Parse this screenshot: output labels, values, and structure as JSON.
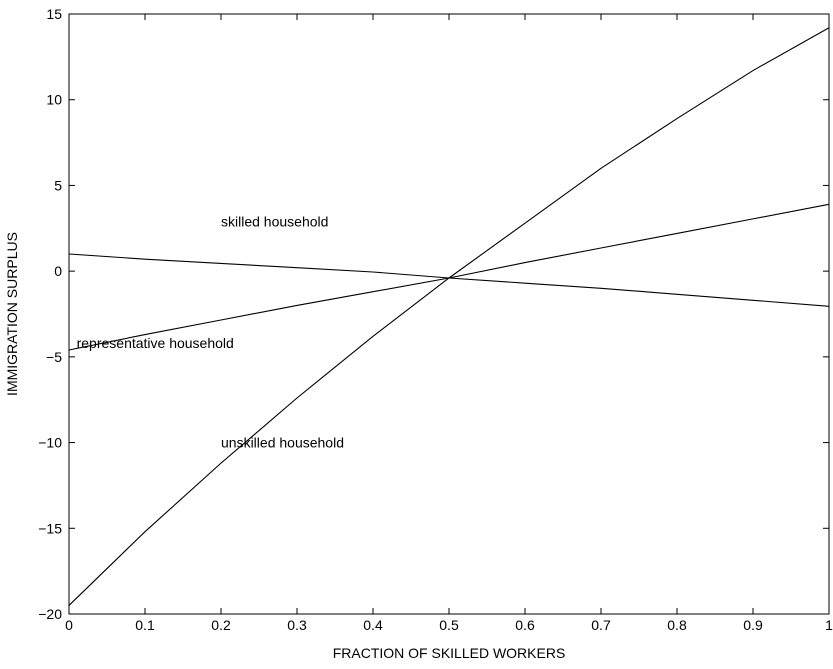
{
  "chart_data": {
    "type": "line",
    "title": "",
    "xlabel": "FRACTION OF SKILLED WORKERS",
    "ylabel": "IMMIGRATION SURPLUS",
    "xlim": [
      0,
      1
    ],
    "ylim": [
      -20,
      15
    ],
    "grid": false,
    "x_ticks": [
      0,
      0.1,
      0.2,
      0.3,
      0.4,
      0.5,
      0.6,
      0.7,
      0.8,
      0.9,
      1
    ],
    "x_tick_labels": [
      "0",
      "0.1",
      "0.2",
      "0.3",
      "0.4",
      "0.5",
      "0.6",
      "0.7",
      "0.8",
      "0.9",
      "1"
    ],
    "y_ticks": [
      -20,
      -15,
      -10,
      -5,
      0,
      5,
      10,
      15
    ],
    "y_tick_labels": [
      "−20",
      "−15",
      "−10",
      "−5",
      "0",
      "5",
      "10",
      "15"
    ],
    "line_color": "#000000",
    "series": [
      {
        "name": "skilled household",
        "x": [
          0,
          0.1,
          0.2,
          0.3,
          0.4,
          0.5,
          0.6,
          0.7,
          0.8,
          0.9,
          1
        ],
        "y": [
          1.0,
          0.7,
          0.45,
          0.2,
          -0.05,
          -0.4,
          -0.7,
          -1.0,
          -1.35,
          -1.7,
          -2.05
        ]
      },
      {
        "name": "representative household",
        "x": [
          0,
          0.1,
          0.2,
          0.3,
          0.4,
          0.5,
          0.6,
          0.7,
          0.8,
          0.9,
          1
        ],
        "y": [
          -4.6,
          -3.7,
          -2.85,
          -2.0,
          -1.2,
          -0.4,
          0.5,
          1.35,
          2.2,
          3.05,
          3.9
        ]
      },
      {
        "name": "unskilled household",
        "x": [
          0,
          0.1,
          0.2,
          0.3,
          0.4,
          0.5,
          0.6,
          0.7,
          0.8,
          0.9,
          1
        ],
        "y": [
          -19.5,
          -15.2,
          -11.2,
          -7.4,
          -3.8,
          -0.4,
          2.8,
          6.0,
          8.9,
          11.7,
          14.2
        ]
      }
    ],
    "annotations": [
      {
        "text": "skilled household",
        "x": 0.2,
        "y": 2.9
      },
      {
        "text": "representative household",
        "x": 0.01,
        "y": -4.2
      },
      {
        "text": "unskilled household",
        "x": 0.2,
        "y": -10.0
      }
    ]
  }
}
